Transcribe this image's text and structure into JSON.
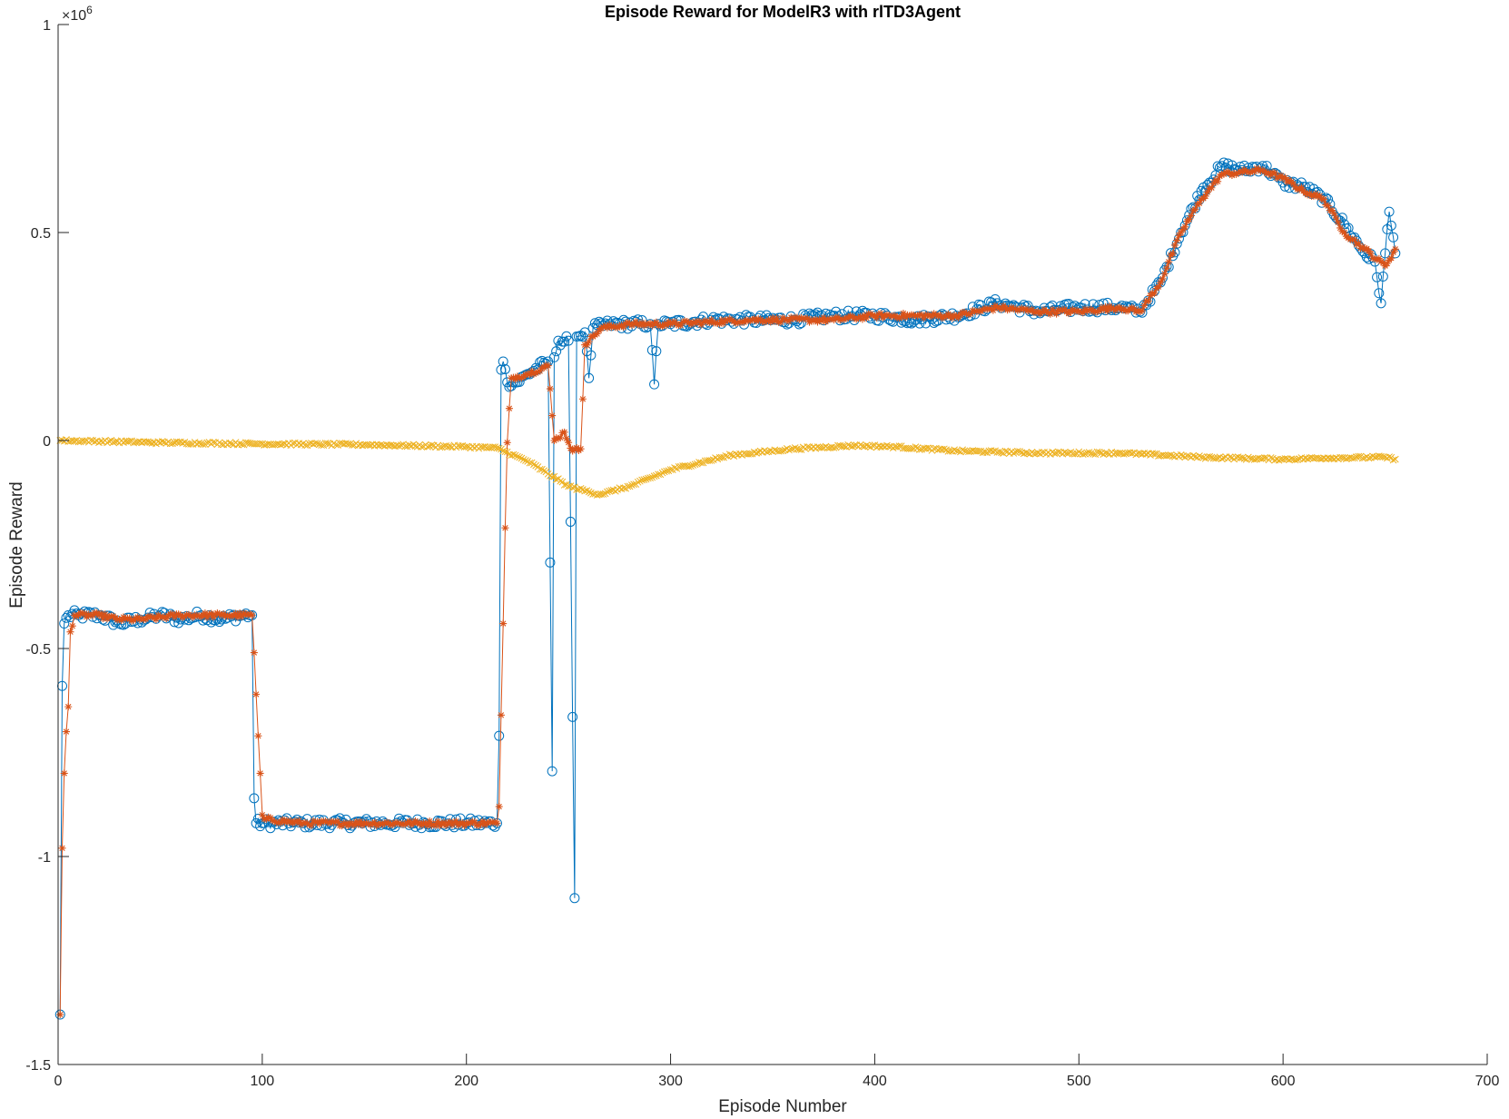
{
  "chart_data": {
    "type": "line",
    "title": "Episode Reward for ModelR3 with rlTD3Agent",
    "xlabel": "Episode Number",
    "ylabel": "Episode Reward",
    "xlim": [
      0,
      700
    ],
    "ylim": [
      -1.5,
      1
    ],
    "xticks": [
      0,
      100,
      200,
      300,
      400,
      500,
      600,
      700
    ],
    "yticks": [
      -1.5,
      -1,
      -0.5,
      0,
      0.5,
      1
    ],
    "xtick_labels": [
      "0",
      "100",
      "200",
      "300",
      "400",
      "500",
      "600",
      "700"
    ],
    "ytick_labels": [
      "-1.5",
      "-1",
      "-0.5",
      "0",
      "0.5",
      "1"
    ],
    "y_exponent": {
      "base": "×10",
      "power": "6"
    },
    "grid": false,
    "colors": {
      "episode": "#0072BD",
      "average": "#D95319",
      "q0": "#EDB120",
      "axis": "#262626"
    },
    "series_anchor_note": "",
    "series": [
      {
        "name": "",
        "marker": "o",
        "color": "#0072BD",
        "anchors": [
          [
            1,
            -1.38
          ],
          [
            2,
            -0.59
          ],
          [
            3,
            -0.44
          ],
          [
            5,
            -0.42
          ],
          [
            10,
            -0.42
          ],
          [
            20,
            -0.42
          ],
          [
            30,
            -0.44
          ],
          [
            40,
            -0.43
          ],
          [
            50,
            -0.42
          ],
          [
            60,
            -0.43
          ],
          [
            70,
            -0.42
          ],
          [
            80,
            -0.43
          ],
          [
            90,
            -0.42
          ],
          [
            95,
            -0.42
          ],
          [
            96,
            -0.86
          ],
          [
            97,
            -0.92
          ],
          [
            100,
            -0.92
          ],
          [
            120,
            -0.92
          ],
          [
            140,
            -0.92
          ],
          [
            160,
            -0.92
          ],
          [
            180,
            -0.92
          ],
          [
            200,
            -0.92
          ],
          [
            215,
            -0.92
          ],
          [
            216,
            -0.71
          ],
          [
            217,
            0.17
          ],
          [
            218,
            0.19
          ],
          [
            220,
            0.14
          ],
          [
            225,
            0.14
          ],
          [
            230,
            0.16
          ],
          [
            240,
            0.19
          ],
          [
            242,
            -0.795
          ],
          [
            243,
            0.2
          ],
          [
            245,
            0.24
          ],
          [
            250,
            0.24
          ],
          [
            253,
            -1.1
          ],
          [
            254,
            0.25
          ],
          [
            258,
            0.26
          ],
          [
            260,
            0.15
          ],
          [
            262,
            0.27
          ],
          [
            270,
            0.28
          ],
          [
            290,
            0.28
          ],
          [
            292,
            0.135
          ],
          [
            294,
            0.28
          ],
          [
            300,
            0.28
          ],
          [
            320,
            0.29
          ],
          [
            340,
            0.29
          ],
          [
            360,
            0.29
          ],
          [
            380,
            0.3
          ],
          [
            400,
            0.3
          ],
          [
            420,
            0.29
          ],
          [
            440,
            0.3
          ],
          [
            460,
            0.33
          ],
          [
            470,
            0.32
          ],
          [
            480,
            0.31
          ],
          [
            500,
            0.32
          ],
          [
            520,
            0.32
          ],
          [
            530,
            0.31
          ],
          [
            540,
            0.38
          ],
          [
            550,
            0.5
          ],
          [
            560,
            0.6
          ],
          [
            570,
            0.66
          ],
          [
            580,
            0.65
          ],
          [
            590,
            0.66
          ],
          [
            600,
            0.62
          ],
          [
            610,
            0.61
          ],
          [
            620,
            0.58
          ],
          [
            630,
            0.52
          ],
          [
            640,
            0.45
          ],
          [
            645,
            0.43
          ],
          [
            648,
            0.33
          ],
          [
            650,
            0.45
          ],
          [
            652,
            0.55
          ],
          [
            655,
            0.45
          ]
        ]
      },
      {
        "name": "",
        "marker": "*",
        "color": "#D95319",
        "anchors": [
          [
            1,
            -1.38
          ],
          [
            2,
            -0.98
          ],
          [
            3,
            -0.8
          ],
          [
            4,
            -0.7
          ],
          [
            5,
            -0.64
          ],
          [
            6,
            -0.46
          ],
          [
            8,
            -0.42
          ],
          [
            20,
            -0.42
          ],
          [
            30,
            -0.43
          ],
          [
            40,
            -0.43
          ],
          [
            60,
            -0.42
          ],
          [
            80,
            -0.42
          ],
          [
            95,
            -0.42
          ],
          [
            96,
            -0.51
          ],
          [
            97,
            -0.61
          ],
          [
            98,
            -0.71
          ],
          [
            99,
            -0.8
          ],
          [
            100,
            -0.9
          ],
          [
            101,
            -0.91
          ],
          [
            120,
            -0.92
          ],
          [
            150,
            -0.92
          ],
          [
            180,
            -0.92
          ],
          [
            200,
            -0.92
          ],
          [
            215,
            -0.92
          ],
          [
            216,
            -0.88
          ],
          [
            217,
            -0.66
          ],
          [
            218,
            -0.44
          ],
          [
            219,
            -0.21
          ],
          [
            220,
            -0.005
          ],
          [
            222,
            0.15
          ],
          [
            230,
            0.16
          ],
          [
            240,
            0.18
          ],
          [
            243,
            0.0
          ],
          [
            248,
            0.02
          ],
          [
            252,
            -0.025
          ],
          [
            256,
            -0.02
          ],
          [
            258,
            0.23
          ],
          [
            262,
            0.25
          ],
          [
            266,
            0.27
          ],
          [
            280,
            0.28
          ],
          [
            300,
            0.28
          ],
          [
            340,
            0.29
          ],
          [
            380,
            0.29
          ],
          [
            400,
            0.3
          ],
          [
            420,
            0.3
          ],
          [
            440,
            0.3
          ],
          [
            460,
            0.32
          ],
          [
            480,
            0.31
          ],
          [
            500,
            0.31
          ],
          [
            520,
            0.32
          ],
          [
            530,
            0.31
          ],
          [
            540,
            0.38
          ],
          [
            550,
            0.5
          ],
          [
            560,
            0.58
          ],
          [
            570,
            0.64
          ],
          [
            580,
            0.645
          ],
          [
            590,
            0.65
          ],
          [
            600,
            0.63
          ],
          [
            610,
            0.6
          ],
          [
            620,
            0.58
          ],
          [
            630,
            0.5
          ],
          [
            640,
            0.46
          ],
          [
            650,
            0.42
          ],
          [
            655,
            0.46
          ]
        ]
      },
      {
        "name": "",
        "marker": "x",
        "color": "#EDB120",
        "anchors": [
          [
            1,
            0.0
          ],
          [
            50,
            -0.005
          ],
          [
            100,
            -0.008
          ],
          [
            150,
            -0.01
          ],
          [
            200,
            -0.015
          ],
          [
            215,
            -0.018
          ],
          [
            230,
            -0.05
          ],
          [
            250,
            -0.11
          ],
          [
            265,
            -0.13
          ],
          [
            280,
            -0.11
          ],
          [
            300,
            -0.07
          ],
          [
            330,
            -0.035
          ],
          [
            360,
            -0.02
          ],
          [
            390,
            -0.012
          ],
          [
            410,
            -0.015
          ],
          [
            440,
            -0.025
          ],
          [
            480,
            -0.03
          ],
          [
            520,
            -0.03
          ],
          [
            560,
            -0.04
          ],
          [
            600,
            -0.045
          ],
          [
            620,
            -0.042
          ],
          [
            650,
            -0.04
          ],
          [
            655,
            -0.045
          ]
        ]
      }
    ]
  }
}
